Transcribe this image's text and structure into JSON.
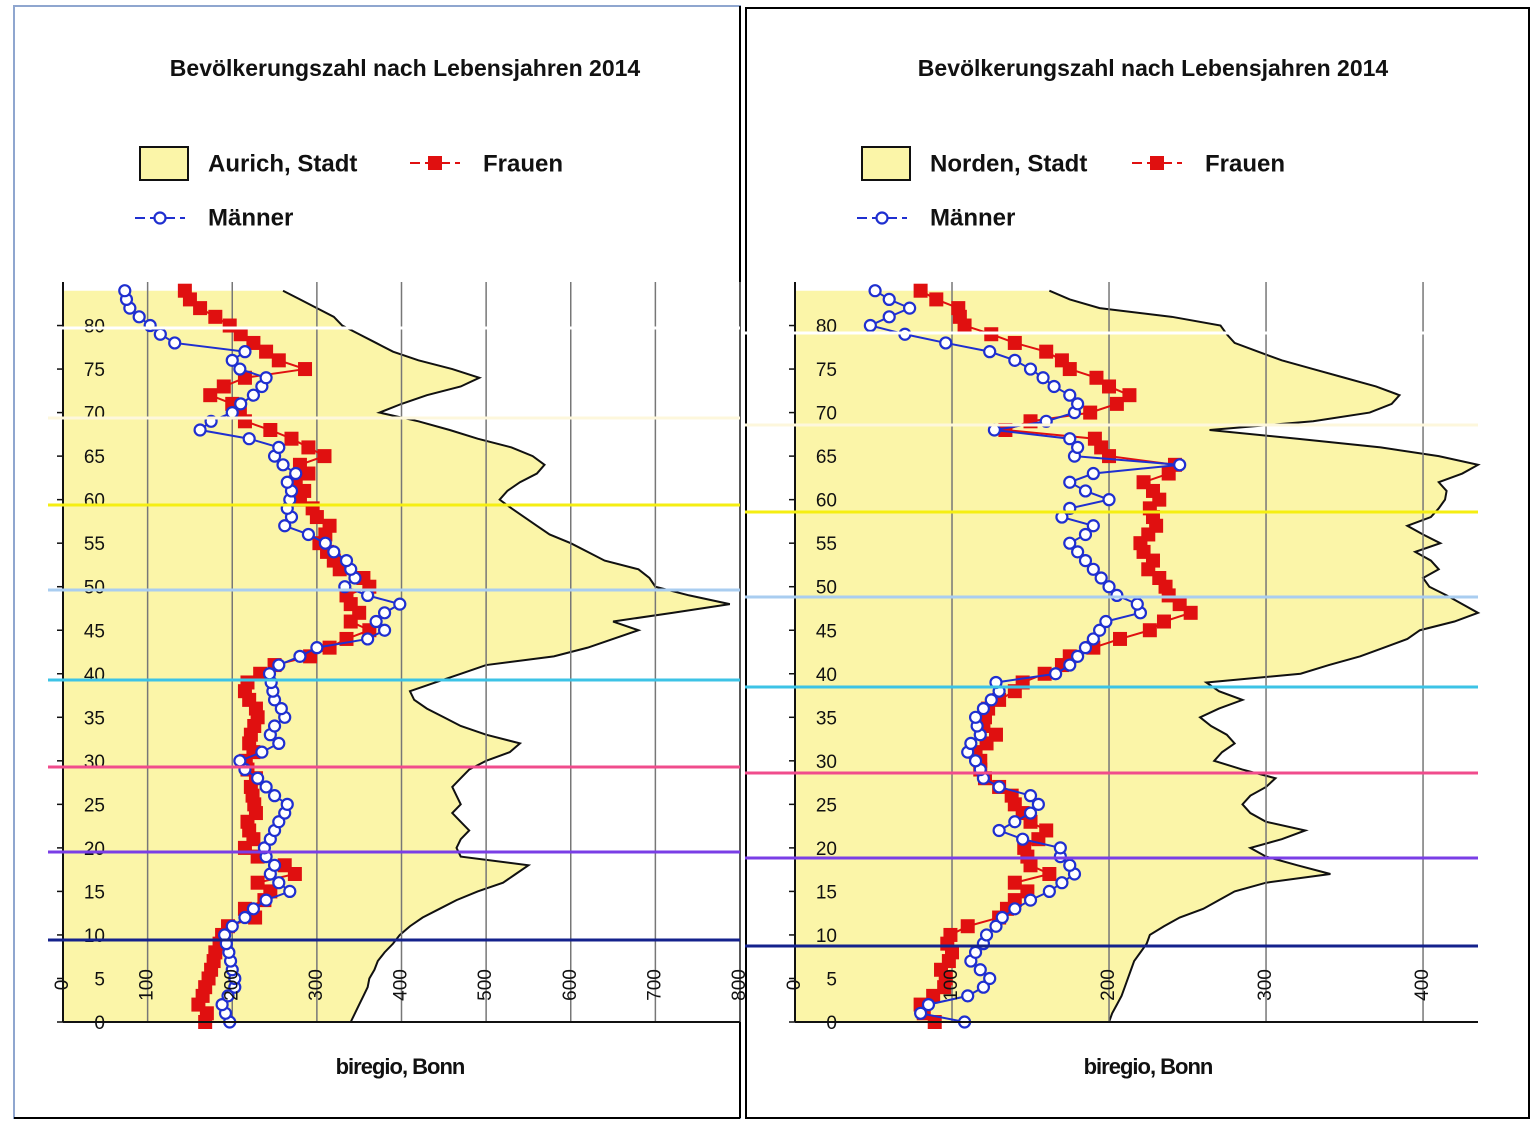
{
  "chart_data": [
    {
      "type": "line",
      "orientation": "horizontal",
      "title": "Bevölkerungszahl nach Lebensjahren 2014",
      "xlabel": "biregio, Bonn",
      "xlim": [
        0,
        800
      ],
      "xticks": [
        0,
        100,
        200,
        300,
        400,
        500,
        600,
        700,
        800
      ],
      "ylim": [
        0,
        85
      ],
      "yticks": [
        0,
        5,
        10,
        15,
        20,
        25,
        30,
        35,
        40,
        45,
        50,
        55,
        60,
        65,
        70,
        75,
        80
      ],
      "grid": true,
      "y": [
        0,
        1,
        2,
        3,
        4,
        5,
        6,
        7,
        8,
        9,
        10,
        11,
        12,
        13,
        14,
        15,
        16,
        17,
        18,
        19,
        20,
        21,
        22,
        23,
        24,
        25,
        26,
        27,
        28,
        29,
        30,
        31,
        32,
        33,
        34,
        35,
        36,
        37,
        38,
        39,
        40,
        41,
        42,
        43,
        44,
        45,
        46,
        47,
        48,
        49,
        50,
        51,
        52,
        53,
        54,
        55,
        56,
        57,
        58,
        59,
        60,
        61,
        62,
        63,
        64,
        65,
        66,
        67,
        68,
        69,
        70,
        71,
        72,
        73,
        74,
        75,
        76,
        77,
        78,
        79,
        80,
        81,
        82,
        83,
        84
      ],
      "series": [
        {
          "name": "Aurich, Stadt",
          "color": "#fbf5a8",
          "style": "area",
          "values": [
            340,
            345,
            350,
            355,
            360,
            362,
            368,
            372,
            380,
            390,
            398,
            410,
            425,
            445,
            465,
            490,
            520,
            535,
            550,
            470,
            465,
            470,
            480,
            470,
            460,
            470,
            465,
            460,
            470,
            480,
            500,
            528,
            540,
            500,
            470,
            450,
            430,
            415,
            410,
            440,
            470,
            500,
            580,
            620,
            650,
            680,
            650,
            720,
            788,
            740,
            700,
            693,
            680,
            640,
            620,
            600,
            575,
            560,
            545,
            530,
            516,
            525,
            540,
            560,
            569,
            555,
            530,
            490,
            457,
            420,
            374,
            400,
            430,
            470,
            492,
            460,
            420,
            390,
            370,
            350,
            330,
            320,
            300,
            280,
            260
          ]
        },
        {
          "name": "Frauen",
          "color": "#e01010",
          "style": "line",
          "marker": "square",
          "values": [
            168,
            170,
            160,
            165,
            168,
            172,
            175,
            178,
            180,
            185,
            188,
            195,
            227,
            215,
            238,
            245,
            230,
            274,
            262,
            230,
            215,
            225,
            220,
            218,
            228,
            226,
            224,
            222,
            228,
            218,
            216,
            225,
            220,
            222,
            226,
            230,
            228,
            220,
            215,
            218,
            233,
            250,
            292,
            315,
            335,
            362,
            340,
            350,
            340,
            335,
            362,
            355,
            327,
            320,
            312,
            303,
            310,
            315,
            300,
            295,
            280,
            285,
            275,
            290,
            280,
            309,
            290,
            270,
            245,
            215,
            209,
            200,
            174,
            190,
            215,
            286,
            255,
            240,
            225,
            210,
            197,
            180,
            162,
            150,
            144
          ]
        },
        {
          "name": "Männer",
          "color": "#1f2fd0",
          "style": "line",
          "marker": "circle",
          "values": [
            197,
            192,
            188,
            195,
            203,
            203,
            200,
            198,
            196,
            193,
            191,
            200,
            215,
            225,
            240,
            268,
            255,
            245,
            250,
            240,
            238,
            245,
            250,
            255,
            262,
            265,
            250,
            240,
            230,
            215,
            209,
            235,
            255,
            245,
            250,
            262,
            258,
            250,
            248,
            246,
            244,
            255,
            280,
            300,
            360,
            380,
            370,
            380,
            398,
            360,
            333,
            345,
            340,
            335,
            320,
            310,
            290,
            262,
            270,
            265,
            268,
            270,
            265,
            275,
            260,
            250,
            255,
            220,
            162,
            175,
            200,
            210,
            225,
            235,
            240,
            209,
            200,
            215,
            132,
            115,
            103,
            90,
            79,
            75,
            73
          ]
        }
      ]
    },
    {
      "type": "line",
      "orientation": "horizontal",
      "title": "Bevölkerungszahl nach Lebensjahren 2014",
      "xlabel": "biregio, Bonn",
      "xlim": [
        0,
        435
      ],
      "xticks": [
        0,
        100,
        200,
        300,
        400
      ],
      "ylim": [
        0,
        85
      ],
      "yticks": [
        0,
        5,
        10,
        15,
        20,
        25,
        30,
        35,
        40,
        45,
        50,
        55,
        60,
        65,
        70,
        75,
        80
      ],
      "grid": true,
      "y": [
        0,
        1,
        2,
        3,
        4,
        5,
        6,
        7,
        8,
        9,
        10,
        11,
        12,
        13,
        14,
        15,
        16,
        17,
        18,
        19,
        20,
        21,
        22,
        23,
        24,
        25,
        26,
        27,
        28,
        29,
        30,
        31,
        32,
        33,
        34,
        35,
        36,
        37,
        38,
        39,
        40,
        41,
        42,
        43,
        44,
        45,
        46,
        47,
        48,
        49,
        50,
        51,
        52,
        53,
        54,
        55,
        56,
        57,
        58,
        59,
        60,
        61,
        62,
        63,
        64,
        65,
        66,
        67,
        68,
        69,
        70,
        71,
        72,
        73,
        74,
        75,
        76,
        77,
        78,
        79,
        80,
        81,
        82,
        83,
        84
      ],
      "series": [
        {
          "name": "Norden, Stadt",
          "color": "#fbf5a8",
          "style": "area",
          "values": [
            200,
            202,
            205,
            208,
            210,
            212,
            214,
            216,
            220,
            224,
            226,
            235,
            245,
            260,
            270,
            280,
            300,
            341,
            320,
            300,
            290,
            310,
            325,
            300,
            290,
            285,
            290,
            300,
            306,
            285,
            267,
            272,
            280,
            275,
            265,
            258,
            270,
            285,
            270,
            262,
            322,
            340,
            360,
            375,
            390,
            398,
            420,
            435,
            425,
            415,
            404,
            400,
            410,
            405,
            395,
            411,
            400,
            390,
            405,
            410,
            414,
            415,
            410,
            425,
            435,
            410,
            373,
            320,
            264,
            330,
            366,
            380,
            385,
            370,
            350,
            330,
            310,
            295,
            280,
            275,
            271,
            240,
            194,
            175,
            162
          ]
        },
        {
          "name": "Frauen",
          "color": "#e01010",
          "style": "line",
          "marker": "square",
          "values": [
            89,
            82,
            80,
            88,
            95,
            96,
            93,
            98,
            100,
            97,
            99,
            110,
            130,
            135,
            140,
            148,
            140,
            162,
            150,
            148,
            146,
            155,
            160,
            150,
            145,
            140,
            138,
            130,
            121,
            118,
            118,
            115,
            122,
            128,
            120,
            121,
            123,
            130,
            140,
            145,
            159,
            170,
            175,
            190,
            207,
            226,
            235,
            252,
            245,
            238,
            236,
            232,
            225,
            228,
            222,
            220,
            225,
            230,
            228,
            226,
            232,
            228,
            222,
            238,
            242,
            200,
            195,
            191,
            134,
            150,
            188,
            205,
            213,
            200,
            192,
            175,
            170,
            160,
            140,
            125,
            108,
            105,
            104,
            90,
            80
          ]
        },
        {
          "name": "Männer",
          "color": "#1f2fd0",
          "style": "line",
          "marker": "circle",
          "values": [
            108,
            80,
            85,
            110,
            120,
            124,
            118,
            112,
            115,
            120,
            122,
            128,
            132,
            140,
            150,
            162,
            170,
            178,
            175,
            169,
            169,
            145,
            130,
            140,
            150,
            155,
            150,
            130,
            120,
            118,
            115,
            110,
            112,
            118,
            116,
            115,
            120,
            125,
            130,
            128,
            166,
            175,
            180,
            185,
            190,
            194,
            198,
            220,
            218,
            205,
            200,
            195,
            190,
            185,
            180,
            175,
            185,
            190,
            170,
            175,
            200,
            185,
            175,
            190,
            245,
            178,
            180,
            175,
            127,
            160,
            178,
            180,
            175,
            165,
            158,
            150,
            140,
            124,
            96,
            70,
            48,
            60,
            73,
            60,
            51
          ]
        }
      ]
    }
  ]
}
